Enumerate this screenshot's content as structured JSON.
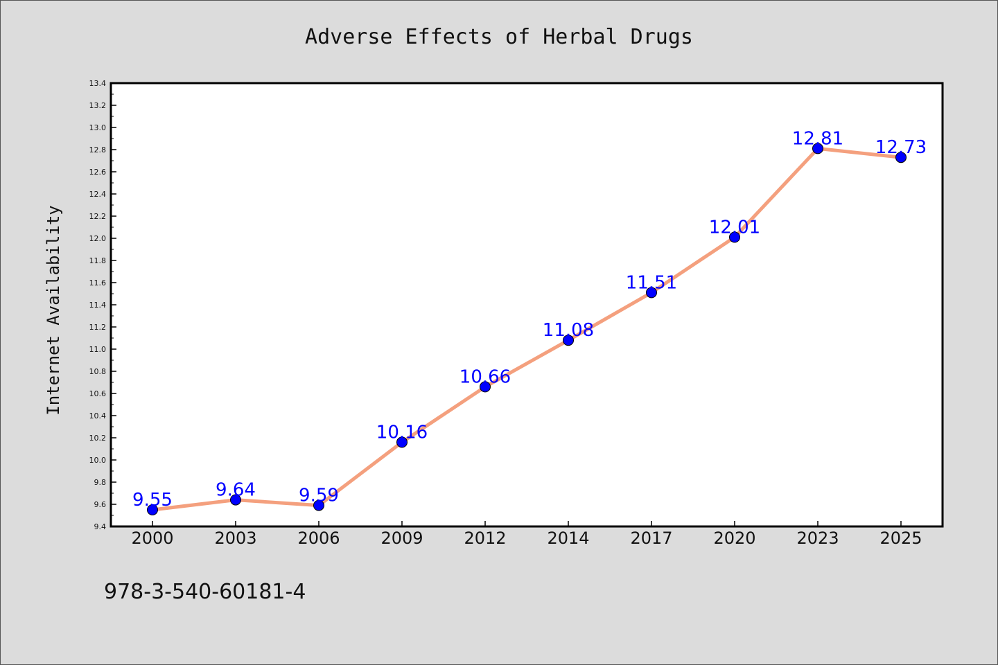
{
  "chart_data": {
    "type": "line",
    "title": "Adverse Effects of Herbal Drugs",
    "xlabel": "",
    "ylabel": "Internet Availability",
    "categories": [
      "2000",
      "2003",
      "2006",
      "2009",
      "2012",
      "2014",
      "2017",
      "2020",
      "2023",
      "2025"
    ],
    "series": [
      {
        "values": [
          9.55,
          9.64,
          9.59,
          10.16,
          10.66,
          11.08,
          11.51,
          12.01,
          12.81,
          12.73
        ],
        "data_labels": [
          "9.55",
          "9.64",
          "9.59",
          "10.16",
          "10.66",
          "11.08",
          "11.51",
          "12.01",
          "12.81",
          "12.73"
        ]
      }
    ],
    "ylim": [
      9.4,
      13.4
    ],
    "y_ticks": [
      "9.4",
      "9.6",
      "9.8",
      "10.0",
      "10.2",
      "10.4",
      "10.6",
      "10.8",
      "11.0",
      "11.2",
      "11.4",
      "11.6",
      "11.8",
      "12.0",
      "12.2",
      "12.4",
      "12.6",
      "12.8",
      "13.0",
      "13.2",
      "13.4"
    ],
    "grid": false,
    "line_color": "#f4a07e",
    "marker_color": "#0000ff",
    "label_color": "#0000ff"
  },
  "footnote": "978-3-540-60181-4"
}
